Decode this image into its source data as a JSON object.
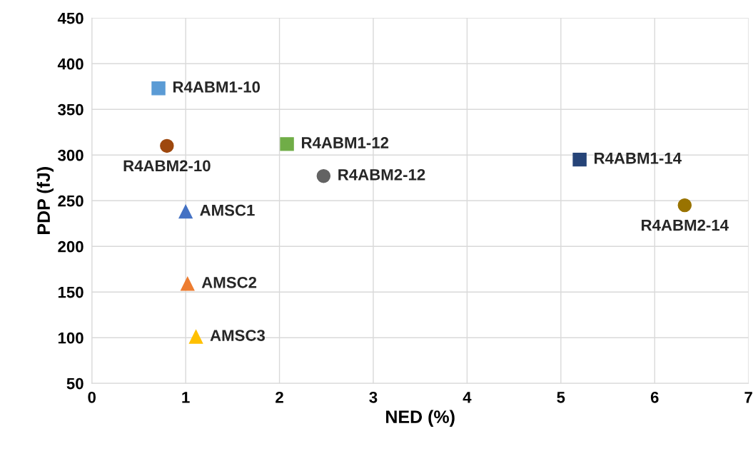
{
  "chart_data": {
    "type": "scatter",
    "xlabel": "NED (%)",
    "ylabel": "PDP (fJ)",
    "xlim": [
      0,
      7
    ],
    "xticks": [
      0,
      1,
      2,
      3,
      4,
      5,
      6,
      7
    ],
    "ylim": [
      50,
      450
    ],
    "yticks": [
      50,
      100,
      150,
      200,
      250,
      300,
      350,
      400,
      450
    ],
    "grid": true,
    "legend": false,
    "series": [
      {
        "name": "R4ABM1-10",
        "color": "#5b9bd5",
        "marker": "square",
        "x": [
          0.71
        ],
        "values": [
          373
        ]
      },
      {
        "name": "R4ABM2-10",
        "color": "#9e480e",
        "marker": "circle",
        "x": [
          0.8
        ],
        "values": [
          310
        ]
      },
      {
        "name": "R4ABM1-12",
        "color": "#70ad47",
        "marker": "square",
        "x": [
          2.08
        ],
        "values": [
          312
        ]
      },
      {
        "name": "R4ABM2-12",
        "color": "#636363",
        "marker": "circle",
        "x": [
          2.47
        ],
        "values": [
          277
        ]
      },
      {
        "name": "R4ABM1-14",
        "color": "#264478",
        "marker": "square",
        "x": [
          5.2
        ],
        "values": [
          295
        ]
      },
      {
        "name": "R4ABM2-14",
        "color": "#997300",
        "marker": "circle",
        "x": [
          6.32
        ],
        "values": [
          245
        ]
      },
      {
        "name": "AMSC1",
        "color": "#4472c4",
        "marker": "triangle",
        "x": [
          1.0
        ],
        "values": [
          238
        ]
      },
      {
        "name": "AMSC2",
        "color": "#ed7d31",
        "marker": "triangle",
        "x": [
          1.02
        ],
        "values": [
          159
        ]
      },
      {
        "name": "AMSC3",
        "color": "#ffc000",
        "marker": "triangle",
        "x": [
          1.11
        ],
        "values": [
          101
        ]
      }
    ]
  }
}
